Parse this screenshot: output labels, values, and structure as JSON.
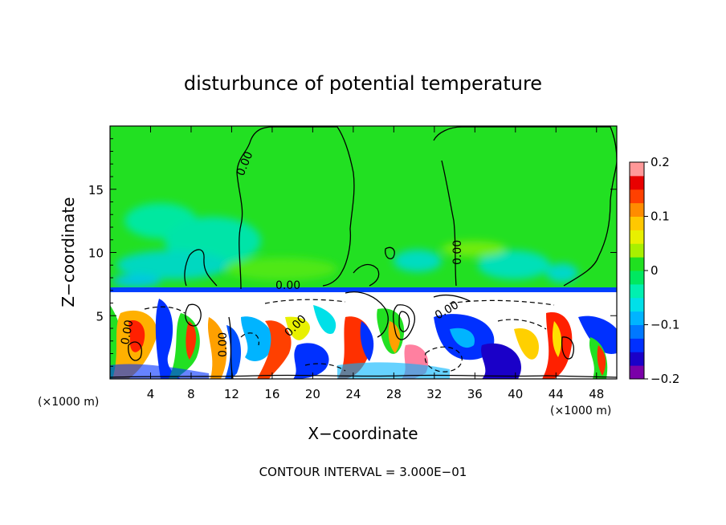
{
  "chart_data": {
    "type": "heatmap",
    "title": "disturbunce of potential temperature",
    "xlabel": "X−coordinate",
    "ylabel": "Z−coordinate",
    "x_unit_left": "(×1000 m)",
    "x_unit_right": "(×1000 m)",
    "xlim": [
      0,
      50
    ],
    "ylim": [
      0,
      20
    ],
    "x_ticks": [
      4,
      8,
      12,
      16,
      20,
      24,
      28,
      32,
      36,
      40,
      44,
      48
    ],
    "y_ticks": [
      5,
      10,
      15
    ],
    "contour_label": "0.00",
    "footer": "CONTOUR INTERVAL = 3.000E−01",
    "colorbar": {
      "range": [
        -0.2,
        0.2
      ],
      "tick_labels": [
        "0.2",
        "0.1",
        "0",
        "−0.1",
        "−0.2"
      ],
      "tick_values": [
        0.2,
        0.1,
        0,
        -0.1,
        -0.2
      ],
      "colors": [
        "#7a00a8",
        "#1a00c8",
        "#0030ff",
        "#0078ff",
        "#00b4ff",
        "#00e0e8",
        "#00f0b0",
        "#00e860",
        "#20e020",
        "#a8f000",
        "#e8f000",
        "#ffc800",
        "#ff8c00",
        "#ff4000",
        "#e80000",
        "#ff9898"
      ]
    }
  }
}
